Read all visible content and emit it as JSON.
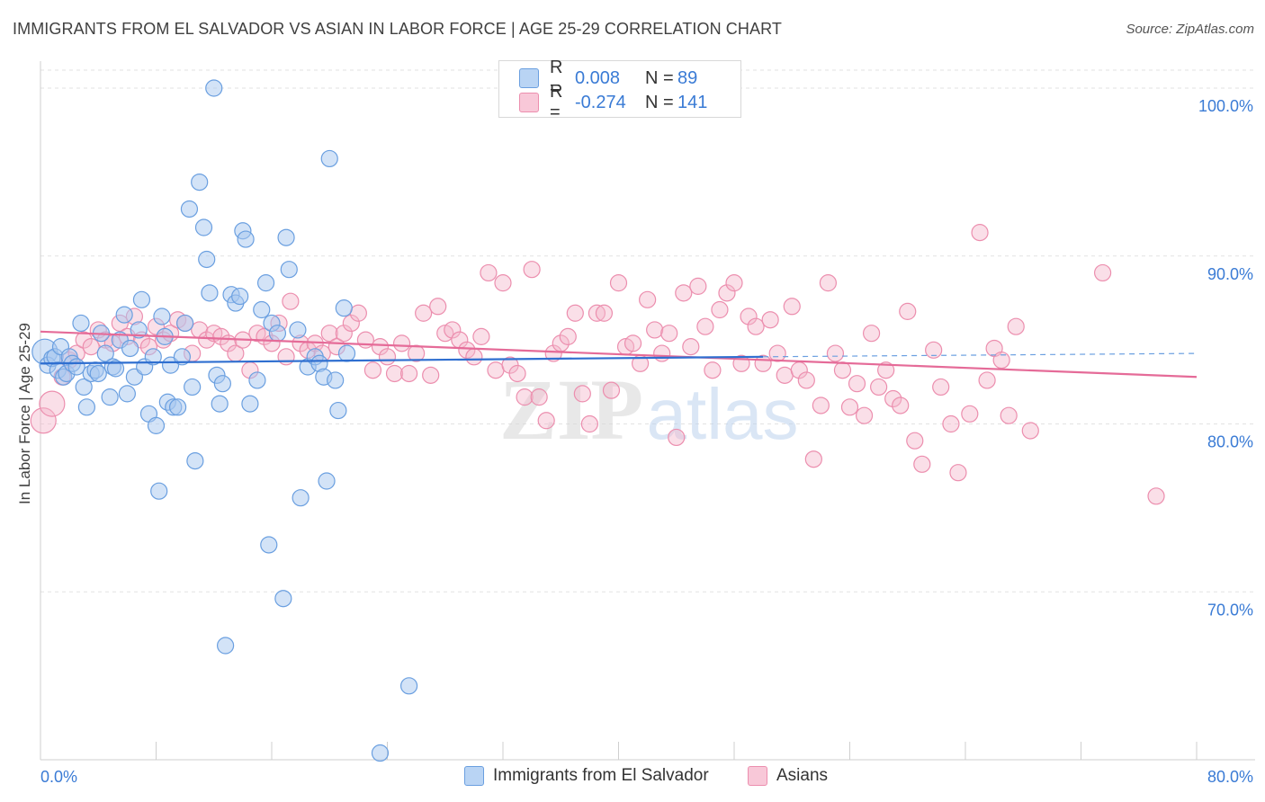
{
  "title": "IMMIGRANTS FROM EL SALVADOR VS ASIAN IN LABOR FORCE | AGE 25-29 CORRELATION CHART",
  "source": "Source: ZipAtlas.com",
  "watermark": {
    "zip": "ZIP",
    "atlas": "atlas"
  },
  "legend_top": {
    "rows": [
      {
        "r_label": "R =",
        "r_value": "0.008",
        "n_label": "N =",
        "n_value": "89"
      },
      {
        "r_label": "R =",
        "r_value": "-0.274",
        "n_label": "N =",
        "n_value": "141"
      }
    ]
  },
  "legend_bottom": {
    "items": [
      {
        "label": "Immigrants from El Salvador"
      },
      {
        "label": "Asians"
      }
    ]
  },
  "colors": {
    "blue_fill": "#a8c8f0",
    "blue_stroke": "#6a9fe0",
    "blue_line": "#2f6fd0",
    "pink_fill": "#f5b8cc",
    "pink_stroke": "#ec8eae",
    "pink_line": "#e56b98",
    "tick_label": "#3a7bd5",
    "grid": "#e2e2e2"
  },
  "chart_data": {
    "type": "scatter",
    "title": "IMMIGRANTS FROM EL SALVADOR VS ASIAN IN LABOR FORCE | AGE 25-29 CORRELATION CHART",
    "xlabel": "",
    "ylabel": "In Labor Force | Age 25-29",
    "xlim": [
      0,
      80
    ],
    "ylim": [
      60,
      101.5
    ],
    "x_tick_labels": [
      "0.0%",
      "80.0%"
    ],
    "y_ticks": [
      70,
      80,
      90,
      100
    ],
    "y_tick_labels": [
      "70.0%",
      "80.0%",
      "90.0%",
      "100.0%"
    ],
    "grid": true,
    "legend_placement": "top-center",
    "series": [
      {
        "name": "Immigrants from El Salvador",
        "trend": {
          "x": [
            0,
            50
          ],
          "y": [
            83.6,
            84.0
          ],
          "dashed_extension_to_x": 80,
          "dashed_end_y": 84.2
        },
        "points": [
          [
            0.3,
            84.3
          ],
          [
            0.5,
            83.5
          ],
          [
            0.8,
            83.9
          ],
          [
            1.0,
            84.0
          ],
          [
            1.2,
            83.2
          ],
          [
            1.4,
            84.6
          ],
          [
            1.6,
            82.8
          ],
          [
            1.8,
            83.0
          ],
          [
            2.0,
            84.0
          ],
          [
            2.2,
            83.6
          ],
          [
            2.5,
            83.4
          ],
          [
            2.8,
            86.0
          ],
          [
            3.0,
            82.2
          ],
          [
            3.2,
            81.0
          ],
          [
            3.5,
            83.0
          ],
          [
            3.8,
            83.2
          ],
          [
            4.0,
            83.0
          ],
          [
            4.2,
            85.4
          ],
          [
            4.5,
            84.2
          ],
          [
            4.8,
            81.6
          ],
          [
            5.0,
            83.4
          ],
          [
            5.2,
            83.3
          ],
          [
            5.5,
            85.0
          ],
          [
            5.8,
            86.5
          ],
          [
            6.0,
            81.8
          ],
          [
            6.2,
            84.5
          ],
          [
            6.5,
            82.8
          ],
          [
            6.8,
            85.6
          ],
          [
            7.0,
            87.4
          ],
          [
            7.2,
            83.4
          ],
          [
            7.5,
            80.6
          ],
          [
            7.8,
            84.0
          ],
          [
            8.0,
            79.9
          ],
          [
            8.2,
            76.0
          ],
          [
            8.4,
            86.4
          ],
          [
            8.6,
            85.2
          ],
          [
            8.8,
            81.3
          ],
          [
            9.0,
            83.5
          ],
          [
            9.2,
            81.0
          ],
          [
            9.5,
            81.0
          ],
          [
            9.8,
            84.0
          ],
          [
            10.0,
            86.0
          ],
          [
            10.3,
            92.8
          ],
          [
            10.5,
            82.2
          ],
          [
            10.7,
            77.8
          ],
          [
            11.0,
            94.4
          ],
          [
            11.3,
            91.7
          ],
          [
            11.5,
            89.8
          ],
          [
            11.7,
            87.8
          ],
          [
            12.0,
            100.0
          ],
          [
            12.2,
            82.9
          ],
          [
            12.4,
            81.2
          ],
          [
            12.6,
            82.4
          ],
          [
            12.8,
            66.8
          ],
          [
            13.2,
            87.7
          ],
          [
            13.5,
            87.2
          ],
          [
            13.8,
            87.6
          ],
          [
            14.0,
            91.5
          ],
          [
            14.2,
            91.0
          ],
          [
            14.5,
            81.2
          ],
          [
            15.0,
            82.6
          ],
          [
            15.3,
            86.8
          ],
          [
            15.6,
            88.4
          ],
          [
            15.8,
            72.8
          ],
          [
            16.0,
            86.0
          ],
          [
            16.4,
            85.4
          ],
          [
            16.8,
            69.6
          ],
          [
            17.0,
            91.1
          ],
          [
            17.2,
            89.2
          ],
          [
            17.8,
            85.6
          ],
          [
            18.0,
            75.6
          ],
          [
            18.5,
            83.4
          ],
          [
            19.0,
            84.0
          ],
          [
            19.3,
            83.6
          ],
          [
            19.6,
            82.8
          ],
          [
            19.8,
            76.6
          ],
          [
            20.0,
            95.8
          ],
          [
            20.4,
            82.6
          ],
          [
            20.6,
            80.8
          ],
          [
            21.0,
            86.9
          ],
          [
            21.2,
            84.2
          ],
          [
            23.5,
            60.4
          ],
          [
            25.5,
            64.4
          ],
          [
            43.0,
            100.0
          ]
        ],
        "point_radius": [
          14,
          9,
          9,
          9,
          9,
          9,
          9,
          9,
          9,
          9,
          9,
          9,
          9,
          9,
          9,
          9,
          9,
          9,
          9,
          9,
          9,
          9,
          9,
          9,
          9,
          9,
          9,
          9,
          9,
          9,
          9,
          9,
          9,
          9,
          9,
          9,
          9,
          9,
          9,
          9,
          9,
          9,
          9,
          9,
          9,
          9,
          9,
          9,
          9,
          9,
          9,
          9,
          9,
          9,
          9,
          9,
          9,
          9,
          9,
          9,
          9,
          9,
          9,
          9,
          9,
          9,
          9,
          9,
          9,
          9,
          9,
          9,
          9,
          9,
          9,
          9,
          9,
          9,
          9,
          9,
          9,
          9,
          9,
          9
        ]
      },
      {
        "name": "Asians",
        "trend": {
          "x": [
            0,
            80
          ],
          "y": [
            85.5,
            82.8
          ]
        },
        "points": [
          [
            0.2,
            80.2
          ],
          [
            0.8,
            81.2
          ],
          [
            1.5,
            82.8
          ],
          [
            2.0,
            83.8
          ],
          [
            2.5,
            84.2
          ],
          [
            3.0,
            85.0
          ],
          [
            3.5,
            84.6
          ],
          [
            4.0,
            85.6
          ],
          [
            4.5,
            85.0
          ],
          [
            5.0,
            84.8
          ],
          [
            5.5,
            86.0
          ],
          [
            6.0,
            85.2
          ],
          [
            6.5,
            86.4
          ],
          [
            7.0,
            85.0
          ],
          [
            7.5,
            84.6
          ],
          [
            8.0,
            85.8
          ],
          [
            8.5,
            85.0
          ],
          [
            9.0,
            85.4
          ],
          [
            9.5,
            86.2
          ],
          [
            10.0,
            86.0
          ],
          [
            10.5,
            84.2
          ],
          [
            11.0,
            85.6
          ],
          [
            11.5,
            85.0
          ],
          [
            12.0,
            85.4
          ],
          [
            12.5,
            85.2
          ],
          [
            13.0,
            84.8
          ],
          [
            13.5,
            84.2
          ],
          [
            14.0,
            85.0
          ],
          [
            14.5,
            83.2
          ],
          [
            15.0,
            85.4
          ],
          [
            15.5,
            85.2
          ],
          [
            16.0,
            84.8
          ],
          [
            16.5,
            86.0
          ],
          [
            17.0,
            84.0
          ],
          [
            17.3,
            87.3
          ],
          [
            18.0,
            84.8
          ],
          [
            18.5,
            84.4
          ],
          [
            19.0,
            84.8
          ],
          [
            19.5,
            84.2
          ],
          [
            20.0,
            85.4
          ],
          [
            20.5,
            84.6
          ],
          [
            21.0,
            85.4
          ],
          [
            21.5,
            86.0
          ],
          [
            22.0,
            86.6
          ],
          [
            22.5,
            85.0
          ],
          [
            23.0,
            83.2
          ],
          [
            23.5,
            84.6
          ],
          [
            24.0,
            84.0
          ],
          [
            24.5,
            83.0
          ],
          [
            25.0,
            84.8
          ],
          [
            25.5,
            83.0
          ],
          [
            26.0,
            84.2
          ],
          [
            26.5,
            86.6
          ],
          [
            27.0,
            82.9
          ],
          [
            27.5,
            87.0
          ],
          [
            28.0,
            85.4
          ],
          [
            28.5,
            85.6
          ],
          [
            29.0,
            85.0
          ],
          [
            29.5,
            84.4
          ],
          [
            30.0,
            84.0
          ],
          [
            30.5,
            85.2
          ],
          [
            31.0,
            89.0
          ],
          [
            31.5,
            83.2
          ],
          [
            32.0,
            88.4
          ],
          [
            32.5,
            83.5
          ],
          [
            33.0,
            83.0
          ],
          [
            33.5,
            81.6
          ],
          [
            34.0,
            89.2
          ],
          [
            34.5,
            81.6
          ],
          [
            35.0,
            80.2
          ],
          [
            35.5,
            84.2
          ],
          [
            36.0,
            84.8
          ],
          [
            36.5,
            85.2
          ],
          [
            37.0,
            86.6
          ],
          [
            37.5,
            81.8
          ],
          [
            38.0,
            80.0
          ],
          [
            38.5,
            86.6
          ],
          [
            39.0,
            86.6
          ],
          [
            39.5,
            82.0
          ],
          [
            40.0,
            88.4
          ],
          [
            40.5,
            84.6
          ],
          [
            41.0,
            84.8
          ],
          [
            41.5,
            83.6
          ],
          [
            42.0,
            87.4
          ],
          [
            42.5,
            85.6
          ],
          [
            43.0,
            84.2
          ],
          [
            43.5,
            85.4
          ],
          [
            44.0,
            79.2
          ],
          [
            44.5,
            87.8
          ],
          [
            45.0,
            84.6
          ],
          [
            45.5,
            88.2
          ],
          [
            46.0,
            85.8
          ],
          [
            46.5,
            83.2
          ],
          [
            47.0,
            86.8
          ],
          [
            47.5,
            87.8
          ],
          [
            48.0,
            88.4
          ],
          [
            48.5,
            83.6
          ],
          [
            49.0,
            86.4
          ],
          [
            49.5,
            85.8
          ],
          [
            50.0,
            83.6
          ],
          [
            50.5,
            86.2
          ],
          [
            51.0,
            84.2
          ],
          [
            51.5,
            82.9
          ],
          [
            52.0,
            87.0
          ],
          [
            52.5,
            83.2
          ],
          [
            53.0,
            82.6
          ],
          [
            53.5,
            77.9
          ],
          [
            54.0,
            81.1
          ],
          [
            54.5,
            88.4
          ],
          [
            55.0,
            84.2
          ],
          [
            55.5,
            83.2
          ],
          [
            56.0,
            81.0
          ],
          [
            56.5,
            82.4
          ],
          [
            57.0,
            80.5
          ],
          [
            57.5,
            85.4
          ],
          [
            58.0,
            82.2
          ],
          [
            58.5,
            83.2
          ],
          [
            59.0,
            81.5
          ],
          [
            59.5,
            81.1
          ],
          [
            60.0,
            86.7
          ],
          [
            60.5,
            79.0
          ],
          [
            61.0,
            77.6
          ],
          [
            61.8,
            84.4
          ],
          [
            62.3,
            82.2
          ],
          [
            63.0,
            80.0
          ],
          [
            63.5,
            77.1
          ],
          [
            64.3,
            80.6
          ],
          [
            65.0,
            91.4
          ],
          [
            65.5,
            82.6
          ],
          [
            66.0,
            84.5
          ],
          [
            66.5,
            83.8
          ],
          [
            67.0,
            80.5
          ],
          [
            67.5,
            85.8
          ],
          [
            68.5,
            79.6
          ],
          [
            73.5,
            89.0
          ],
          [
            77.2,
            75.7
          ]
        ],
        "point_radius": [
          14,
          14,
          9,
          9,
          9,
          9,
          9,
          9,
          9,
          9,
          9,
          9,
          9,
          9,
          9,
          9,
          9,
          9,
          9,
          9,
          9,
          9,
          9,
          9,
          9,
          9,
          9,
          9,
          9,
          9,
          9,
          9,
          9,
          9,
          9,
          9,
          9,
          9,
          9,
          9,
          9,
          9,
          9,
          9,
          9,
          9,
          9,
          9,
          9,
          9,
          9,
          9,
          9,
          9,
          9,
          9,
          9,
          9,
          9,
          9,
          9,
          9,
          9,
          9,
          9,
          9,
          9,
          9,
          9,
          9,
          9,
          9,
          9,
          9,
          9,
          9,
          9,
          9,
          9,
          9,
          9,
          9,
          9,
          9,
          9,
          9,
          9,
          9,
          9,
          9,
          9,
          9,
          9,
          9,
          9,
          9,
          9,
          9,
          9,
          9,
          9,
          9,
          9,
          9,
          9,
          9,
          9,
          9,
          9,
          9,
          9,
          9,
          9,
          9,
          9,
          9,
          9,
          9,
          9,
          9,
          9,
          9,
          9,
          9,
          9,
          9,
          9,
          9,
          9,
          9,
          9,
          9,
          9,
          9,
          9,
          9,
          9,
          9,
          9,
          9,
          9
        ]
      }
    ]
  }
}
